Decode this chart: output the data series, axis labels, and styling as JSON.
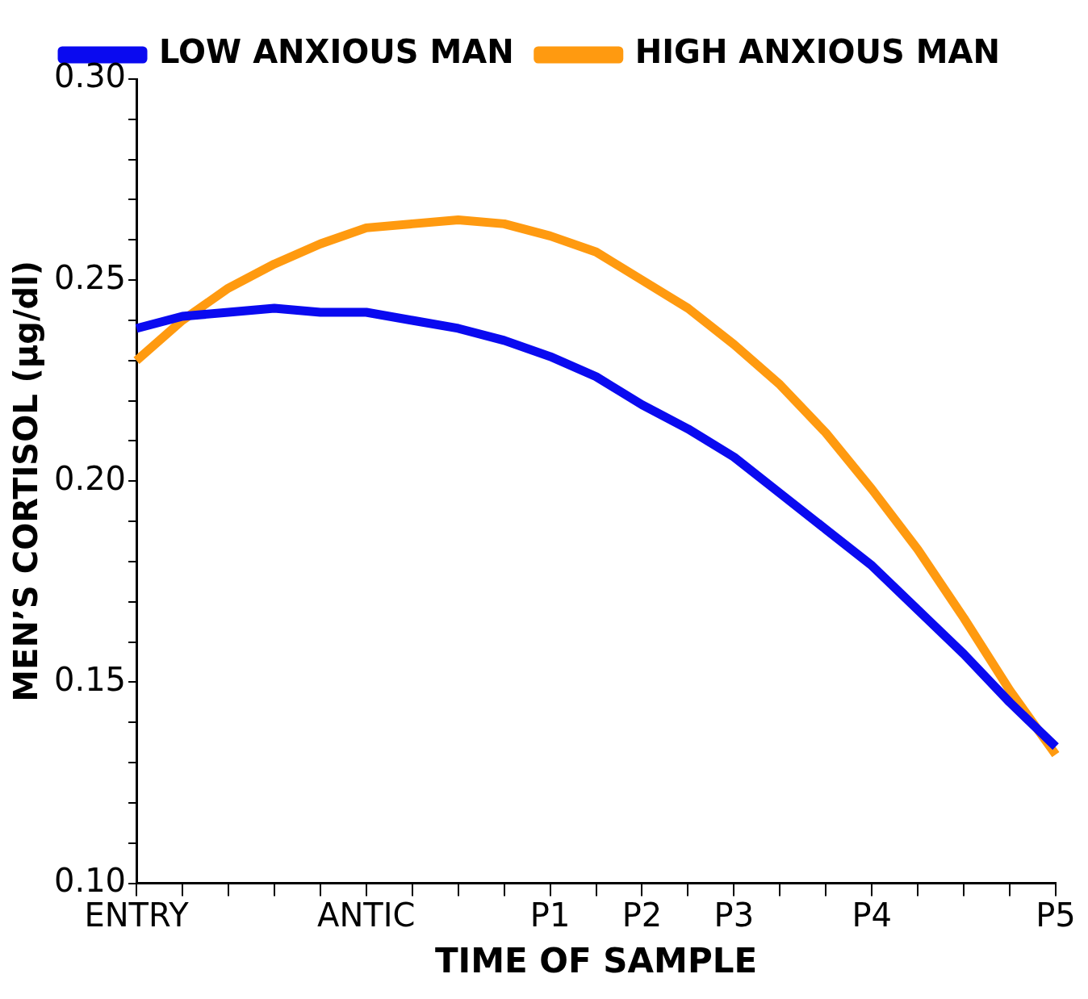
{
  "chart_data": {
    "type": "line",
    "xlabel": "TIME OF SAMPLE",
    "ylabel": "MEN’S CORTISOL (µg/dl)",
    "categories": [
      "ENTRY",
      null,
      null,
      null,
      null,
      "ANTIC",
      null,
      null,
      null,
      "P1",
      null,
      "P2",
      null,
      "P3",
      null,
      null,
      "P4",
      null,
      null,
      null,
      "P5"
    ],
    "ylim": [
      0.1,
      0.3
    ],
    "yticks": [
      {
        "value": 0.1,
        "label": "0.10"
      },
      {
        "value": 0.11,
        "label": null
      },
      {
        "value": 0.12,
        "label": null
      },
      {
        "value": 0.13,
        "label": null
      },
      {
        "value": 0.14,
        "label": null
      },
      {
        "value": 0.15,
        "label": "0.15"
      },
      {
        "value": 0.16,
        "label": null
      },
      {
        "value": 0.17,
        "label": null
      },
      {
        "value": 0.18,
        "label": null
      },
      {
        "value": 0.19,
        "label": null
      },
      {
        "value": 0.2,
        "label": "0.20"
      },
      {
        "value": 0.21,
        "label": null
      },
      {
        "value": 0.22,
        "label": null
      },
      {
        "value": 0.23,
        "label": null
      },
      {
        "value": 0.24,
        "label": null
      },
      {
        "value": 0.25,
        "label": "0.25"
      },
      {
        "value": 0.26,
        "label": null
      },
      {
        "value": 0.27,
        "label": null
      },
      {
        "value": 0.28,
        "label": null
      },
      {
        "value": 0.29,
        "label": null
      },
      {
        "value": 0.3,
        "label": "0.30"
      }
    ],
    "grid": false,
    "legend": "top",
    "marker": "none",
    "line_style": "solid",
    "series": [
      {
        "name": "LOW ANXIOUS MAN",
        "color": "#0a0af0",
        "values": [
          0.238,
          0.241,
          0.242,
          0.243,
          0.242,
          0.242,
          0.24,
          0.238,
          0.235,
          0.231,
          0.226,
          0.219,
          0.213,
          0.206,
          0.197,
          0.188,
          0.179,
          0.168,
          0.157,
          0.145,
          0.134
        ]
      },
      {
        "name": "HIGH ANXIOUS MAN",
        "color": "#ff9a10",
        "values": [
          0.23,
          0.24,
          0.248,
          0.254,
          0.259,
          0.263,
          0.264,
          0.265,
          0.264,
          0.261,
          0.257,
          0.25,
          0.243,
          0.234,
          0.224,
          0.212,
          0.198,
          0.183,
          0.166,
          0.148,
          0.132
        ]
      }
    ]
  }
}
